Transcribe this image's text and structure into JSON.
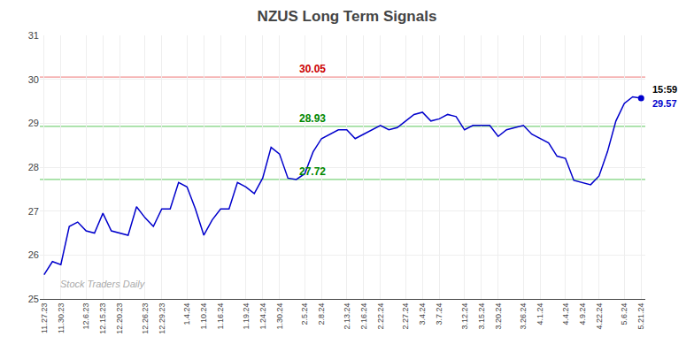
{
  "chart_data": {
    "type": "line",
    "title": "NZUS Long Term Signals",
    "categories": [
      "11.27.23",
      null,
      "11.30.23",
      null,
      null,
      "12.6.23",
      null,
      "12.15.23",
      null,
      "12.20.23",
      null,
      null,
      "12.26.23",
      null,
      "12.29.23",
      null,
      null,
      "1.4.24",
      null,
      "1.10.24",
      null,
      "1.16.24",
      null,
      null,
      "1.19.24",
      null,
      "1.24.24",
      null,
      "1.30.24",
      null,
      null,
      "2.5.24",
      null,
      "2.8.24",
      null,
      null,
      "2.13.24",
      null,
      "2.16.24",
      null,
      "2.22.24",
      null,
      null,
      "2.27.24",
      null,
      "3.4.24",
      null,
      "3.7.24",
      null,
      null,
      "3.12.24",
      null,
      "3.15.24",
      null,
      "3.20.24",
      null,
      null,
      "3.26.24",
      null,
      "4.1.24",
      null,
      null,
      "4.4.24",
      null,
      "4.9.24",
      null,
      "4.22.24",
      null,
      null,
      "5.6.24",
      null,
      "5.21.24"
    ],
    "series": [
      {
        "color": "#0000cc",
        "values": [
          25.55,
          25.85,
          25.78,
          26.65,
          26.75,
          26.55,
          26.5,
          26.95,
          26.55,
          26.5,
          26.45,
          27.1,
          26.85,
          26.65,
          27.05,
          27.05,
          27.65,
          27.55,
          27.05,
          26.45,
          26.8,
          27.05,
          27.05,
          27.65,
          27.55,
          27.4,
          27.75,
          28.45,
          28.3,
          27.75,
          27.72,
          27.85,
          28.35,
          28.65,
          28.75,
          28.85,
          28.85,
          28.65,
          28.75,
          28.85,
          28.95,
          28.85,
          28.9,
          29.05,
          29.2,
          29.25,
          29.05,
          29.1,
          29.2,
          29.15,
          28.85,
          28.95,
          28.95,
          28.95,
          28.7,
          28.85,
          28.9,
          28.95,
          28.75,
          28.65,
          28.55,
          28.25,
          28.2,
          27.7,
          27.65,
          27.6,
          27.8,
          28.35,
          29.05,
          29.45,
          29.6,
          29.57
        ]
      }
    ],
    "hlines": [
      {
        "value": 30.05,
        "color": "#f08080",
        "label": "30.05",
        "label_color": "#cc0000"
      },
      {
        "value": 28.93,
        "color": "#66cc66",
        "label": "28.93",
        "label_color": "#008800"
      },
      {
        "value": 27.72,
        "color": "#66cc66",
        "label": "27.72",
        "label_color": "#008800"
      }
    ],
    "last_point": {
      "color": "#0000cc",
      "time": "15:59",
      "price": "29.57"
    },
    "watermark": "Stock Traders Daily",
    "ylim": [
      25.0,
      31.0
    ],
    "yticks": [
      25,
      26,
      27,
      28,
      29,
      30,
      31
    ],
    "grid": true
  }
}
